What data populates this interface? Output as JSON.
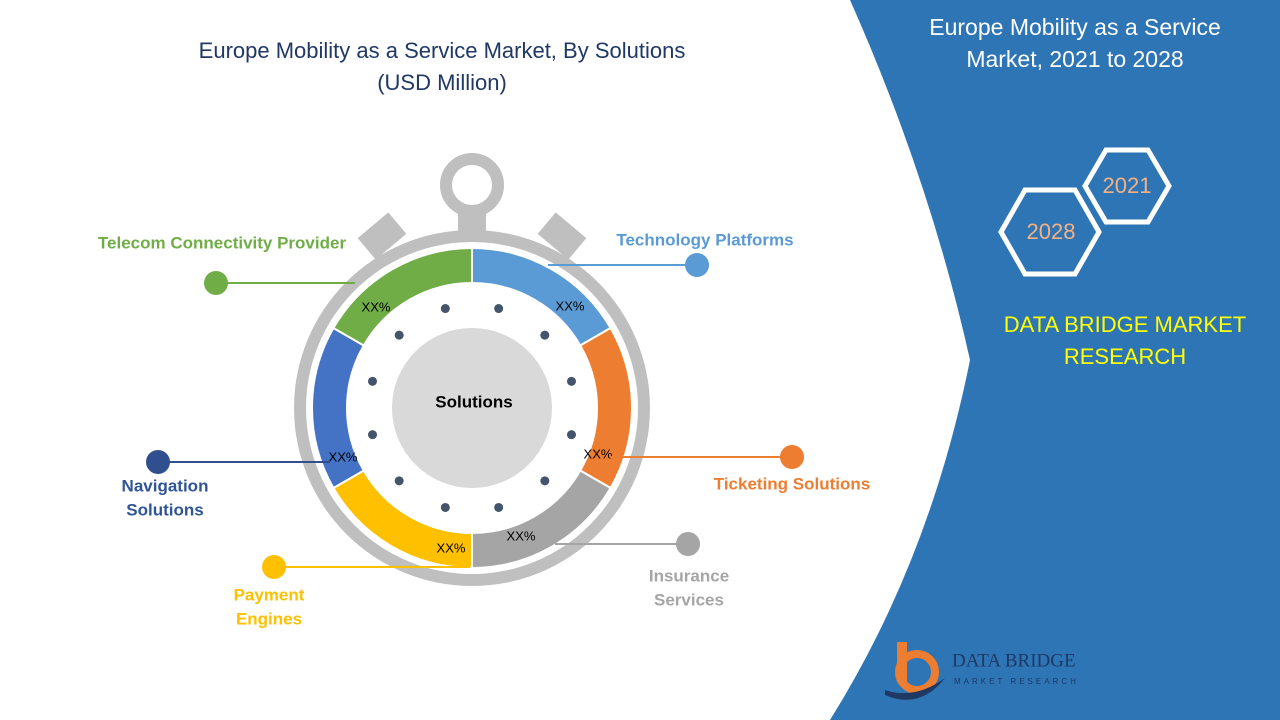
{
  "title": {
    "lines": [
      "Europe Mobility as a Service Market, By Solutions",
      "(USD Million)"
    ]
  },
  "center_label": "Solutions",
  "segments": [
    {
      "label_lines": [
        "Technology Platforms"
      ],
      "value_label": "XX%"
    },
    {
      "label_lines": [
        "Ticketing Solutions"
      ],
      "value_label": "XX%"
    },
    {
      "label_lines": [
        "Insurance",
        "Services"
      ],
      "value_label": "XX%"
    },
    {
      "label_lines": [
        "Payment",
        "Engines"
      ],
      "value_label": "XX%"
    },
    {
      "label_lines": [
        "Navigation",
        "Solutions"
      ],
      "value_label": "XX%"
    },
    {
      "label_lines": [
        "Telecom Connectivity Provider"
      ],
      "value_label": "XX%"
    }
  ],
  "side_panel": {
    "title_lines": [
      "Europe Mobility as a Service",
      "Market, 2021 to 2028"
    ],
    "years": [
      "2021",
      "2028"
    ],
    "brand_lines": [
      "DATA BRIDGE MARKET",
      "RESEARCH"
    ],
    "logo_lines": [
      "DATA BRIDGE",
      "MARKET RESEARCH"
    ]
  }
}
